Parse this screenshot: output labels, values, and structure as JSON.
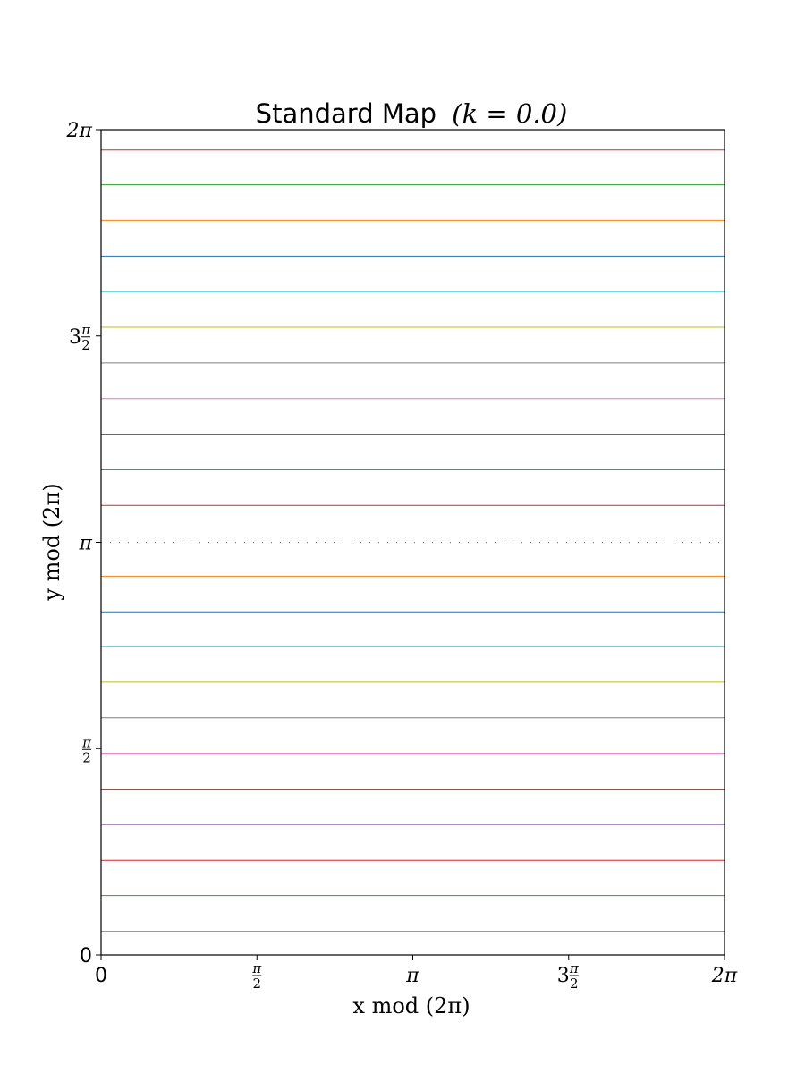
{
  "chart_data": {
    "type": "line",
    "title": "Standard Map",
    "title_param": "(k = 0.0)",
    "xlabel": "x mod (2π)",
    "ylabel": "y mod (2π)",
    "xlim": [
      0,
      6.2832
    ],
    "ylim": [
      0,
      6.2832
    ],
    "grid": false,
    "legend": "none",
    "x_ticks": [
      {
        "value": 0,
        "label": "0"
      },
      {
        "value": 1.5708,
        "label": "π/2"
      },
      {
        "value": 3.1416,
        "label": "π"
      },
      {
        "value": 4.7124,
        "label": "3π/2"
      },
      {
        "value": 6.2832,
        "label": "2π"
      }
    ],
    "y_ticks": [
      {
        "value": 0,
        "label": "0"
      },
      {
        "value": 1.5708,
        "label": "π/2"
      },
      {
        "value": 3.1416,
        "label": "π"
      },
      {
        "value": 4.7124,
        "label": "3π/2"
      },
      {
        "value": 6.2832,
        "label": "2π"
      }
    ],
    "series": [
      {
        "y": 0.18,
        "color": "#ff7f0e",
        "style": "solid"
      },
      {
        "y": 0.452,
        "color": "#2ca02c",
        "style": "solid"
      },
      {
        "y": 0.72,
        "color": "#d62728",
        "style": "solid"
      },
      {
        "y": 0.992,
        "color": "#9467bd",
        "style": "solid"
      },
      {
        "y": 1.263,
        "color": "#8c564b",
        "style": "solid"
      },
      {
        "y": 1.534,
        "color": "#e377c2",
        "style": "solid"
      },
      {
        "y": 1.806,
        "color": "#7f7f7f",
        "style": "solid"
      },
      {
        "y": 2.077,
        "color": "#bcbd22",
        "style": "solid"
      },
      {
        "y": 2.348,
        "color": "#17becf",
        "style": "solid"
      },
      {
        "y": 2.612,
        "color": "#1f77b4",
        "style": "solid"
      },
      {
        "y": 2.884,
        "color": "#ff7f0e",
        "style": "solid"
      },
      {
        "y": 3.141,
        "color": "#7f7f7f",
        "style": "dotted"
      },
      {
        "y": 3.422,
        "color": "#d62728",
        "style": "solid"
      },
      {
        "y": 3.694,
        "color": "#1f77b4",
        "style": "solid"
      },
      {
        "y": 3.965,
        "color": "#8c564b",
        "style": "solid"
      },
      {
        "y": 4.236,
        "color": "#e377c2",
        "style": "solid"
      },
      {
        "y": 4.507,
        "color": "#7f7f7f",
        "style": "solid"
      },
      {
        "y": 4.779,
        "color": "#bcbd22",
        "style": "solid"
      },
      {
        "y": 5.05,
        "color": "#17becf",
        "style": "solid"
      },
      {
        "y": 5.321,
        "color": "#1f77b4",
        "style": "solid"
      },
      {
        "y": 5.593,
        "color": "#ff7f0e",
        "style": "solid"
      },
      {
        "y": 5.864,
        "color": "#2ca02c",
        "style": "solid"
      },
      {
        "y": 6.128,
        "color": "#d62728",
        "style": "solid"
      }
    ]
  }
}
